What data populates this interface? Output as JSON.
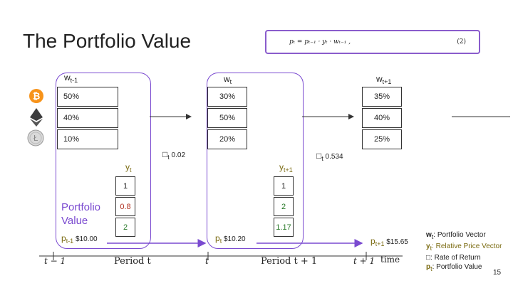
{
  "title": "The Portfolio Value",
  "formula": {
    "equation": "pₜ = pₜ₋₁ · yₜ · wₜ₋₁ ,",
    "number": "(2)"
  },
  "weights": [
    {
      "w": "w",
      "sub": "t-1",
      "values": [
        "50%",
        "40%",
        "10%"
      ]
    },
    {
      "w": "w",
      "sub": "t",
      "values": [
        "30%",
        "50%",
        "20%"
      ]
    },
    {
      "w": "w",
      "sub": "t+1",
      "values": [
        "35%",
        "40%",
        "25%"
      ]
    }
  ],
  "assets": [
    "bitcoin-icon",
    "ethereum-icon",
    "litecoin-icon"
  ],
  "returns": [
    {
      "symbol": "□",
      "sub": "t",
      "value": "0.02"
    },
    {
      "symbol": "□",
      "sub": "t",
      "value": "0.534"
    }
  ],
  "price_vectors": [
    {
      "y": "y",
      "sub": "t",
      "values": [
        "1",
        "0.8",
        "2"
      ]
    },
    {
      "y": "y",
      "sub": "t+1",
      "values": [
        "1",
        "2",
        "1.17"
      ]
    }
  ],
  "portfolio_label": "Portfolio Value",
  "portfolio_values": [
    {
      "p": "p",
      "sub": "t-1",
      "value": "$10.00"
    },
    {
      "p": "p",
      "sub": "t",
      "value": "$10.20"
    },
    {
      "p": "p",
      "sub": "t+1",
      "value": "$15.65"
    }
  ],
  "timeline": {
    "ticks": [
      "t − 1",
      "t",
      "t + 1"
    ],
    "periods": [
      "Period t",
      "Period t + 1"
    ],
    "axis": "time"
  },
  "legend": [
    {
      "sym": "w",
      "sub": "t",
      "text": ": Portfolio Vector"
    },
    {
      "sym": "y",
      "sub": "t",
      "text": ": Relative Price Vector"
    },
    {
      "sym": "□",
      "sub": "",
      "text": ": Rate of Return"
    },
    {
      "sym": "p",
      "sub": "t",
      "text": ": Portfolio Value"
    }
  ],
  "page_number": "15",
  "colors": {
    "accent": "#7a4ad0",
    "red": "#b03020",
    "green": "#2a7a2a",
    "olive": "#7a6a10"
  }
}
